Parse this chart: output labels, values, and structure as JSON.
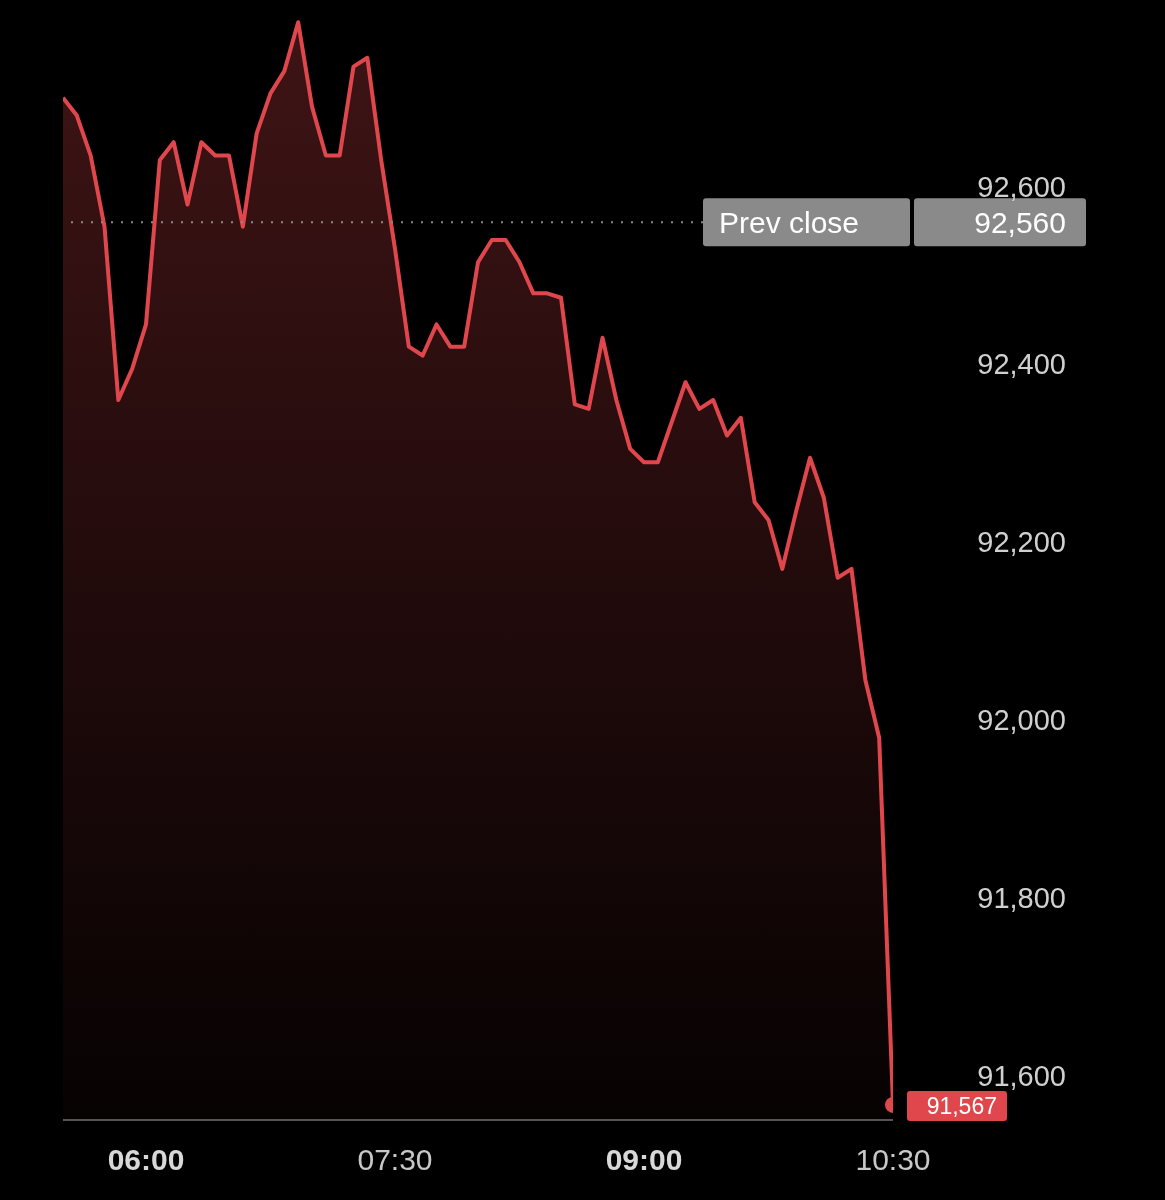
{
  "chart_data": {
    "type": "area",
    "x": [
      5.5,
      5.5833,
      5.6667,
      5.75,
      5.8333,
      5.9167,
      6,
      6.0833,
      6.1667,
      6.25,
      6.3333,
      6.4167,
      6.5,
      6.5833,
      6.6667,
      6.75,
      6.8333,
      6.9167,
      7,
      7.0833,
      7.1667,
      7.25,
      7.3333,
      7.4167,
      7.5,
      7.5833,
      7.6667,
      7.75,
      7.8333,
      7.9167,
      8,
      8.0833,
      8.1667,
      8.25,
      8.3333,
      8.4167,
      8.5,
      8.5833,
      8.6667,
      8.75,
      8.8333,
      8.9167,
      9,
      9.0833,
      9.1667,
      9.25,
      9.3333,
      9.4167,
      9.5,
      9.5833,
      9.6667,
      9.75,
      9.8333,
      9.9167,
      10,
      10.0833,
      10.1667,
      10.25,
      10.3333,
      10.4167,
      10.5
    ],
    "series": [
      {
        "color": "#e0474c",
        "values": [
          92700,
          92680,
          92635,
          92555,
          92360,
          92395,
          92445,
          92630,
          92650,
          92580,
          92650,
          92635,
          92635,
          92555,
          92660,
          92705,
          92730,
          92785,
          92690,
          92635,
          92635,
          92735,
          92745,
          92630,
          92530,
          92420,
          92410,
          92445,
          92420,
          92420,
          92515,
          92540,
          92540,
          92515,
          92480,
          92480,
          92475,
          92355,
          92350,
          92430,
          92360,
          92305,
          92290,
          92290,
          92335,
          92380,
          92350,
          92360,
          92320,
          92340,
          92245,
          92225,
          92170,
          92235,
          92295,
          92250,
          92160,
          92170,
          92045,
          91980,
          91567
        ],
        "value_labels": [
          null,
          null,
          null,
          null,
          null,
          null,
          null,
          null,
          null,
          null,
          null,
          null,
          null,
          null,
          null,
          null,
          null,
          null,
          null,
          null,
          null,
          null,
          null,
          null,
          null,
          null,
          null,
          null,
          null,
          null,
          null,
          null,
          null,
          null,
          null,
          null,
          null,
          null,
          null,
          null,
          null,
          null,
          null,
          null,
          null,
          null,
          null,
          null,
          null,
          null,
          null,
          null,
          null,
          null,
          null,
          null,
          null,
          null,
          null,
          null,
          "91,567"
        ]
      }
    ],
    "xlim": [
      5.5,
      10.5
    ],
    "xticks": [
      {
        "value": 6,
        "label": "06:00"
      },
      {
        "value": 7.5,
        "label": "07:30"
      },
      {
        "value": 9,
        "label": "09:00"
      },
      {
        "value": 10.5,
        "label": "10:30"
      }
    ],
    "ylim": [
      91550,
      92810
    ],
    "yticks": [
      {
        "value": 92600,
        "label": "92,600"
      },
      {
        "value": 92400,
        "label": "92,400"
      },
      {
        "value": 92200,
        "label": "92,200"
      },
      {
        "value": 92000,
        "label": "92,000"
      },
      {
        "value": 91800,
        "label": "91,800"
      },
      {
        "value": 91600,
        "label": "91,600"
      }
    ],
    "ref_lines": [
      {
        "axis": "y",
        "value": 92560,
        "label": "Prev close",
        "color": "#8a8a8a",
        "line_style": "dotted"
      }
    ],
    "annotations": [
      "92,560"
    ],
    "grid": false,
    "legend": false
  }
}
